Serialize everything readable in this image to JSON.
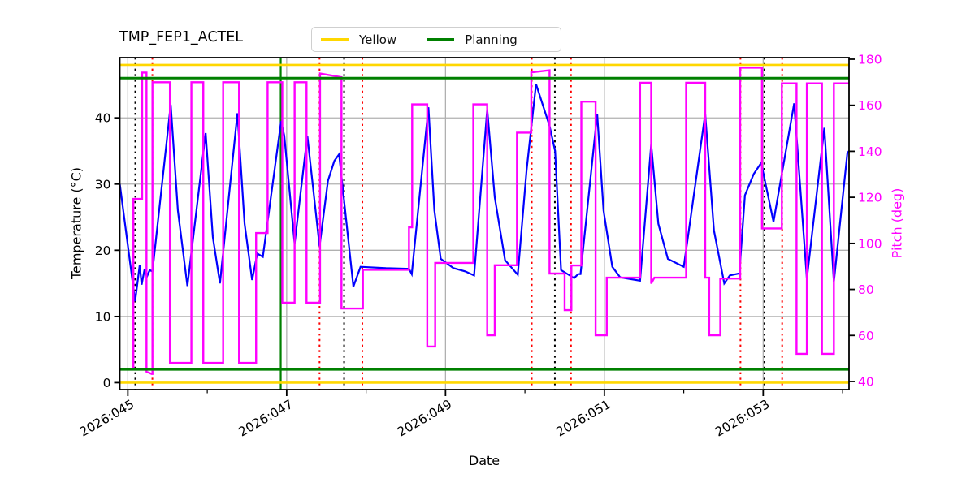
{
  "title": "TMP_FEP1_ACTEL",
  "legend": {
    "items": [
      {
        "label": "Yellow",
        "color": "#ffd700"
      },
      {
        "label": "Planning",
        "color": "#008000"
      }
    ]
  },
  "chart_data": {
    "type": "line",
    "title": "TMP_FEP1_ACTEL",
    "xlabel": "Date",
    "ylabel_left": "Temperature (°C)",
    "ylabel_right": "Pitch (deg)",
    "grid": true,
    "grid_color": "#b0b0b0",
    "legend_position": "top-center",
    "x_range_days": [
      44.899,
      54.081
    ],
    "y_left_range": [
      -1.05,
      49.1
    ],
    "y_right_range": [
      36.47,
      180.7
    ],
    "x_ticks": [
      {
        "day": 45,
        "label": "2026:045"
      },
      {
        "day": 47,
        "label": "2026:047"
      },
      {
        "day": 49,
        "label": "2026:049"
      },
      {
        "day": 51,
        "label": "2026:051"
      },
      {
        "day": 53,
        "label": "2026:053"
      }
    ],
    "x_minor_tick_days": [
      46,
      48,
      50,
      52,
      54
    ],
    "y_left_ticks": [
      0,
      10,
      20,
      30,
      40
    ],
    "y_right_ticks": [
      40,
      60,
      80,
      100,
      120,
      140,
      160,
      180
    ],
    "limit_lines": {
      "yellow": {
        "label": "Yellow",
        "color": "#ffd700",
        "temps": [
          0,
          48
        ]
      },
      "planning": {
        "label": "Planning",
        "color": "#008000",
        "temps": [
          2,
          46
        ]
      }
    },
    "vertical_lines": {
      "black_dotted": {
        "color": "#000000",
        "days": [
          45.094,
          47.723,
          50.377,
          53.016
        ]
      },
      "red_dotted": {
        "color": "#ff0000",
        "days": [
          45.309,
          47.414,
          47.953,
          50.086,
          50.58,
          52.714,
          53.239
        ]
      },
      "green_solid": {
        "color": "#008000",
        "days": [
          46.925
        ]
      }
    },
    "series": [
      {
        "name": "Temperature",
        "axis": "left",
        "color": "#0000ff",
        "width": 2.2,
        "points": [
          [
            44.899,
            30.0
          ],
          [
            45.092,
            12.3
          ],
          [
            45.15,
            17.8
          ],
          [
            45.174,
            14.8
          ],
          [
            45.212,
            17.2
          ],
          [
            45.24,
            16.0
          ],
          [
            45.275,
            17.0
          ],
          [
            45.31,
            16.8
          ],
          [
            45.54,
            42.0
          ],
          [
            45.63,
            26.0
          ],
          [
            45.75,
            14.6
          ],
          [
            45.98,
            37.7
          ],
          [
            46.07,
            22.0
          ],
          [
            46.16,
            15.0
          ],
          [
            46.38,
            40.7
          ],
          [
            46.47,
            24.0
          ],
          [
            46.565,
            15.5
          ],
          [
            46.63,
            19.5
          ],
          [
            46.7,
            19.0
          ],
          [
            46.93,
            39.5
          ],
          [
            46.97,
            37.3
          ],
          [
            47.1,
            21.0
          ],
          [
            47.26,
            37.3
          ],
          [
            47.414,
            20.6
          ],
          [
            47.52,
            30.5
          ],
          [
            47.6,
            33.5
          ],
          [
            47.66,
            34.5
          ],
          [
            47.84,
            14.5
          ],
          [
            47.93,
            17.5
          ],
          [
            48.25,
            17.3
          ],
          [
            48.54,
            17.2
          ],
          [
            48.575,
            16.4
          ],
          [
            48.785,
            41.6
          ],
          [
            48.86,
            26.0
          ],
          [
            48.94,
            18.7
          ],
          [
            49.1,
            17.3
          ],
          [
            49.25,
            16.8
          ],
          [
            49.36,
            16.2
          ],
          [
            49.525,
            41.3
          ],
          [
            49.62,
            28.0
          ],
          [
            49.75,
            18.5
          ],
          [
            49.91,
            16.3
          ],
          [
            50.02,
            32.0
          ],
          [
            50.14,
            45.1
          ],
          [
            50.31,
            38.8
          ],
          [
            50.38,
            35.0
          ],
          [
            50.455,
            17.0
          ],
          [
            50.55,
            16.3
          ],
          [
            50.62,
            15.8
          ],
          [
            50.67,
            16.4
          ],
          [
            50.7,
            16.4
          ],
          [
            50.91,
            40.6
          ],
          [
            50.99,
            26.0
          ],
          [
            51.1,
            17.5
          ],
          [
            51.2,
            15.9
          ],
          [
            51.45,
            15.4
          ],
          [
            51.59,
            36.0
          ],
          [
            51.68,
            24.0
          ],
          [
            51.8,
            18.7
          ],
          [
            52.0,
            17.5
          ],
          [
            52.27,
            40.6
          ],
          [
            52.38,
            23.0
          ],
          [
            52.51,
            15.0
          ],
          [
            52.58,
            16.2
          ],
          [
            52.7,
            16.5
          ],
          [
            52.77,
            28.3
          ],
          [
            52.88,
            31.5
          ],
          [
            52.975,
            33.2
          ],
          [
            53.13,
            24.3
          ],
          [
            53.39,
            42.2
          ],
          [
            53.55,
            15.7
          ],
          [
            53.77,
            38.5
          ],
          [
            53.89,
            15.2
          ],
          [
            54.06,
            34.7
          ],
          [
            54.081,
            35.0
          ]
        ]
      },
      {
        "name": "Pitch",
        "axis": "right",
        "color": "#ff00ff",
        "width": 2.4,
        "points": [
          [
            44.899,
            45.3
          ],
          [
            45.07,
            45.3
          ],
          [
            45.07,
            119.3
          ],
          [
            45.18,
            119.3
          ],
          [
            45.18,
            174.2
          ],
          [
            45.235,
            174.2
          ],
          [
            45.235,
            44.3
          ],
          [
            45.3,
            43.3
          ],
          [
            45.31,
            43.3
          ],
          [
            45.31,
            170.0
          ],
          [
            45.53,
            170.0
          ],
          [
            45.53,
            48.1
          ],
          [
            45.8,
            48.1
          ],
          [
            45.8,
            170.0
          ],
          [
            45.95,
            170.0
          ],
          [
            45.95,
            48.1
          ],
          [
            46.2,
            48.1
          ],
          [
            46.2,
            170.0
          ],
          [
            46.4,
            170.0
          ],
          [
            46.4,
            48.1
          ],
          [
            46.615,
            48.1
          ],
          [
            46.615,
            104.5
          ],
          [
            46.76,
            104.5
          ],
          [
            46.76,
            170.0
          ],
          [
            46.945,
            170.0
          ],
          [
            46.945,
            74.2
          ],
          [
            47.1,
            74.2
          ],
          [
            47.1,
            170.0
          ],
          [
            47.25,
            170.0
          ],
          [
            47.25,
            74.2
          ],
          [
            47.42,
            74.2
          ],
          [
            47.42,
            173.8
          ],
          [
            47.69,
            172.2
          ],
          [
            47.69,
            71.7
          ],
          [
            47.96,
            71.7
          ],
          [
            47.96,
            88.5
          ],
          [
            48.54,
            88.5
          ],
          [
            48.54,
            107.0
          ],
          [
            48.58,
            107.0
          ],
          [
            48.58,
            160.4
          ],
          [
            48.77,
            160.4
          ],
          [
            48.77,
            55.2
          ],
          [
            48.87,
            55.2
          ],
          [
            48.87,
            91.5
          ],
          [
            49.35,
            91.5
          ],
          [
            49.35,
            160.4
          ],
          [
            49.525,
            160.4
          ],
          [
            49.525,
            60.1
          ],
          [
            49.62,
            60.1
          ],
          [
            49.62,
            90.5
          ],
          [
            49.9,
            90.5
          ],
          [
            49.9,
            148.1
          ],
          [
            50.08,
            148.1
          ],
          [
            50.08,
            174.3
          ],
          [
            50.31,
            175.2
          ],
          [
            50.31,
            86.9
          ],
          [
            50.5,
            86.9
          ],
          [
            50.5,
            71.0
          ],
          [
            50.585,
            71.0
          ],
          [
            50.585,
            90.4
          ],
          [
            50.71,
            90.4
          ],
          [
            50.71,
            161.6
          ],
          [
            50.89,
            161.6
          ],
          [
            50.89,
            60.1
          ],
          [
            51.03,
            60.1
          ],
          [
            51.03,
            85.1
          ],
          [
            51.45,
            85.1
          ],
          [
            51.45,
            169.8
          ],
          [
            51.59,
            169.8
          ],
          [
            51.59,
            82.5
          ],
          [
            51.63,
            85.1
          ],
          [
            52.03,
            85.1
          ],
          [
            52.03,
            169.8
          ],
          [
            52.27,
            169.8
          ],
          [
            52.27,
            85.1
          ],
          [
            52.32,
            85.1
          ],
          [
            52.32,
            60.1
          ],
          [
            52.46,
            60.1
          ],
          [
            52.46,
            84.7
          ],
          [
            52.71,
            84.7
          ],
          [
            52.71,
            176.3
          ],
          [
            52.985,
            176.3
          ],
          [
            52.985,
            106.5
          ],
          [
            53.235,
            106.5
          ],
          [
            53.235,
            169.5
          ],
          [
            53.42,
            169.5
          ],
          [
            53.42,
            52.0
          ],
          [
            53.55,
            52.0
          ],
          [
            53.55,
            169.5
          ],
          [
            53.74,
            169.5
          ],
          [
            53.74,
            52.0
          ],
          [
            53.89,
            52.0
          ],
          [
            53.89,
            169.5
          ],
          [
            54.081,
            169.5
          ]
        ]
      }
    ]
  }
}
